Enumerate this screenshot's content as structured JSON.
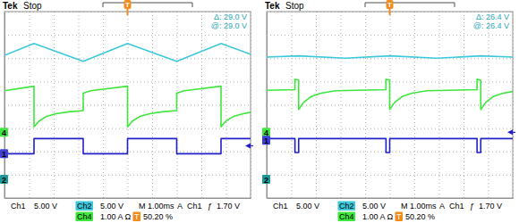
{
  "chart_data": [
    {
      "type": "line",
      "brand": "Tek",
      "title": "Stop",
      "annotations": [
        "Δ: 29.0 V",
        "@: 29.0 V"
      ],
      "footer": [
        [
          "Ch1",
          "5.00 V",
          "Ch2",
          "5.00 V",
          "M 1.00ms",
          "A",
          "Ch1",
          "ƒ",
          "1.70 V"
        ],
        [
          "Ch4",
          "1.00 A Ω",
          "T",
          "50.20 %"
        ]
      ],
      "xlim": [
        -5,
        5
      ],
      "xticks": [
        -5,
        -4,
        -3,
        -2,
        -1,
        0,
        1,
        2,
        3,
        4,
        5
      ],
      "ylim": [
        -4,
        4
      ],
      "yticks": [
        -4,
        -3,
        -2,
        -1,
        0,
        1,
        2,
        3,
        4
      ],
      "grid": true,
      "tick_labels": false,
      "series": [
        {
          "color": "#3cc8dc",
          "x": [
            -5,
            -3.8,
            -1.8,
            0,
            2,
            3.8,
            5
          ],
          "values": [
            2.12,
            2.63,
            1.87,
            2.63,
            1.87,
            2.63,
            2.17
          ]
        },
        {
          "color": "#3ee63e",
          "x": [
            -5,
            -3.8,
            -3.8,
            -3.6,
            -3.3,
            -2.9,
            -2.4,
            -1.8,
            -1.8,
            -1.5,
            0,
            0,
            0.2,
            0.5,
            0.9,
            1.4,
            2,
            2,
            2.3,
            3.8,
            3.8,
            4.0,
            4.3,
            4.7,
            5
          ],
          "values": [
            0.6,
            0.8,
            -0.95,
            -0.7,
            -0.5,
            -0.38,
            -0.3,
            -0.25,
            0.5,
            0.6,
            0.8,
            -0.95,
            -0.7,
            -0.5,
            -0.38,
            -0.3,
            -0.25,
            0.5,
            0.6,
            0.8,
            -0.95,
            -0.7,
            -0.5,
            -0.38,
            -0.32
          ]
        },
        {
          "color": "#2020c8",
          "x": [
            -5,
            -3.8,
            -3.8,
            -1.8,
            -1.8,
            0,
            0,
            2,
            2,
            3.8,
            3.8,
            5
          ],
          "values": [
            -2.1,
            -2.1,
            -1.45,
            -1.45,
            -2.1,
            -2.1,
            -1.45,
            -1.45,
            -2.1,
            -2.1,
            -1.45,
            -1.45
          ]
        }
      ],
      "channel_levels": [
        {
          "label": "4",
          "value": -1.18,
          "color": "#3ee63e"
        },
        {
          "label": "1",
          "value": -2.1,
          "color": "#4040d8"
        },
        {
          "label": "2",
          "value": -3.2,
          "color": "#1a9a9a"
        }
      ],
      "trigger_level": -1.76,
      "trigger_position": 0
    },
    {
      "type": "line",
      "brand": "Tek",
      "title": "Stop",
      "annotations": [
        "Δ: 26.4 V",
        "@: 26.4 V"
      ],
      "footer": [
        [
          "Ch1",
          "5.00 V",
          "Ch2",
          "5.00 V",
          "M 1.00ms",
          "A",
          "Ch1",
          "ƒ",
          "1.70 V"
        ],
        [
          "Ch4",
          "1.00 A Ω",
          "T",
          "50.20 %"
        ]
      ],
      "xlim": [
        -5,
        5
      ],
      "xticks": [
        -5,
        -4,
        -3,
        -2,
        -1,
        0,
        1,
        2,
        3,
        4,
        5
      ],
      "ylim": [
        -4,
        4
      ],
      "yticks": [
        -4,
        -3,
        -2,
        -1,
        0,
        1,
        2,
        3,
        4
      ],
      "grid": true,
      "tick_labels": false,
      "series": [
        {
          "color": "#3cc8dc",
          "x": [
            -5,
            -3.7,
            -1.8,
            0,
            1.9,
            3.7,
            5
          ],
          "values": [
            2.05,
            2.1,
            2.0,
            2.1,
            2.0,
            2.1,
            2.05
          ]
        },
        {
          "color": "#3ee63e",
          "x": [
            -5,
            -3.85,
            -3.85,
            -3.7,
            -3.7,
            -3.5,
            -3.2,
            -2.8,
            -2.2,
            -0.15,
            -0.15,
            0,
            0,
            0.2,
            0.5,
            0.9,
            1.5,
            3.55,
            3.55,
            3.7,
            3.7,
            3.9,
            4.2,
            4.6,
            5
          ],
          "values": [
            0.62,
            0.65,
            1.1,
            1.05,
            -0.2,
            0.1,
            0.35,
            0.5,
            0.6,
            0.65,
            1.1,
            1.05,
            -0.2,
            0.1,
            0.35,
            0.5,
            0.6,
            0.65,
            1.1,
            1.05,
            -0.2,
            0.1,
            0.35,
            0.5,
            0.57
          ]
        },
        {
          "color": "#2020c8",
          "x": [
            -5,
            -3.85,
            -3.85,
            -3.7,
            -3.7,
            -0.15,
            -0.15,
            0,
            0,
            3.55,
            3.55,
            3.7,
            3.7,
            5
          ],
          "values": [
            -1.45,
            -1.45,
            -2.05,
            -2.05,
            -1.45,
            -1.45,
            -2.05,
            -2.05,
            -1.45,
            -1.45,
            -2.05,
            -2.05,
            -1.45,
            -1.45
          ]
        }
      ],
      "channel_levels": [
        {
          "label": "4",
          "value": -1.18,
          "color": "#3ee63e"
        },
        {
          "label": "1",
          "value": -1.52,
          "color": "#4040d8"
        },
        {
          "label": "2",
          "value": -3.2,
          "color": "#1a9a9a"
        }
      ],
      "trigger_level": -1.18,
      "trigger_position": 0
    }
  ]
}
